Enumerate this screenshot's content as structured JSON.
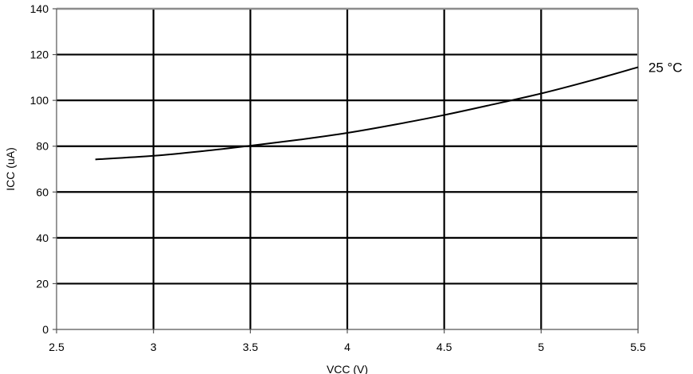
{
  "chart_data": {
    "type": "line",
    "title": "",
    "xlabel": "VCC (V)",
    "ylabel": "ICC (uA)",
    "xlim": [
      2.5,
      5.5
    ],
    "ylim": [
      0,
      140
    ],
    "xticks": [
      2.5,
      3,
      3.5,
      4,
      4.5,
      5,
      5.5
    ],
    "yticks": [
      0,
      20,
      40,
      60,
      80,
      100,
      120,
      140
    ],
    "xtick_labels": [
      "2.5",
      "3",
      "3.5",
      "4",
      "4.5",
      "5",
      "5.5"
    ],
    "ytick_labels": [
      "0",
      "20",
      "40",
      "60",
      "80",
      "100",
      "120",
      "140"
    ],
    "grid": true,
    "series": [
      {
        "name": "25 °C",
        "color": "#000000",
        "x": [
          2.7,
          3.0,
          3.25,
          3.5,
          3.75,
          4.0,
          4.25,
          4.5,
          4.75,
          5.0,
          5.25,
          5.5
        ],
        "y": [
          74.2,
          75.8,
          77.8,
          80.2,
          82.8,
          85.8,
          89.5,
          93.6,
          98.2,
          103.0,
          108.5,
          114.5
        ]
      }
    ]
  }
}
